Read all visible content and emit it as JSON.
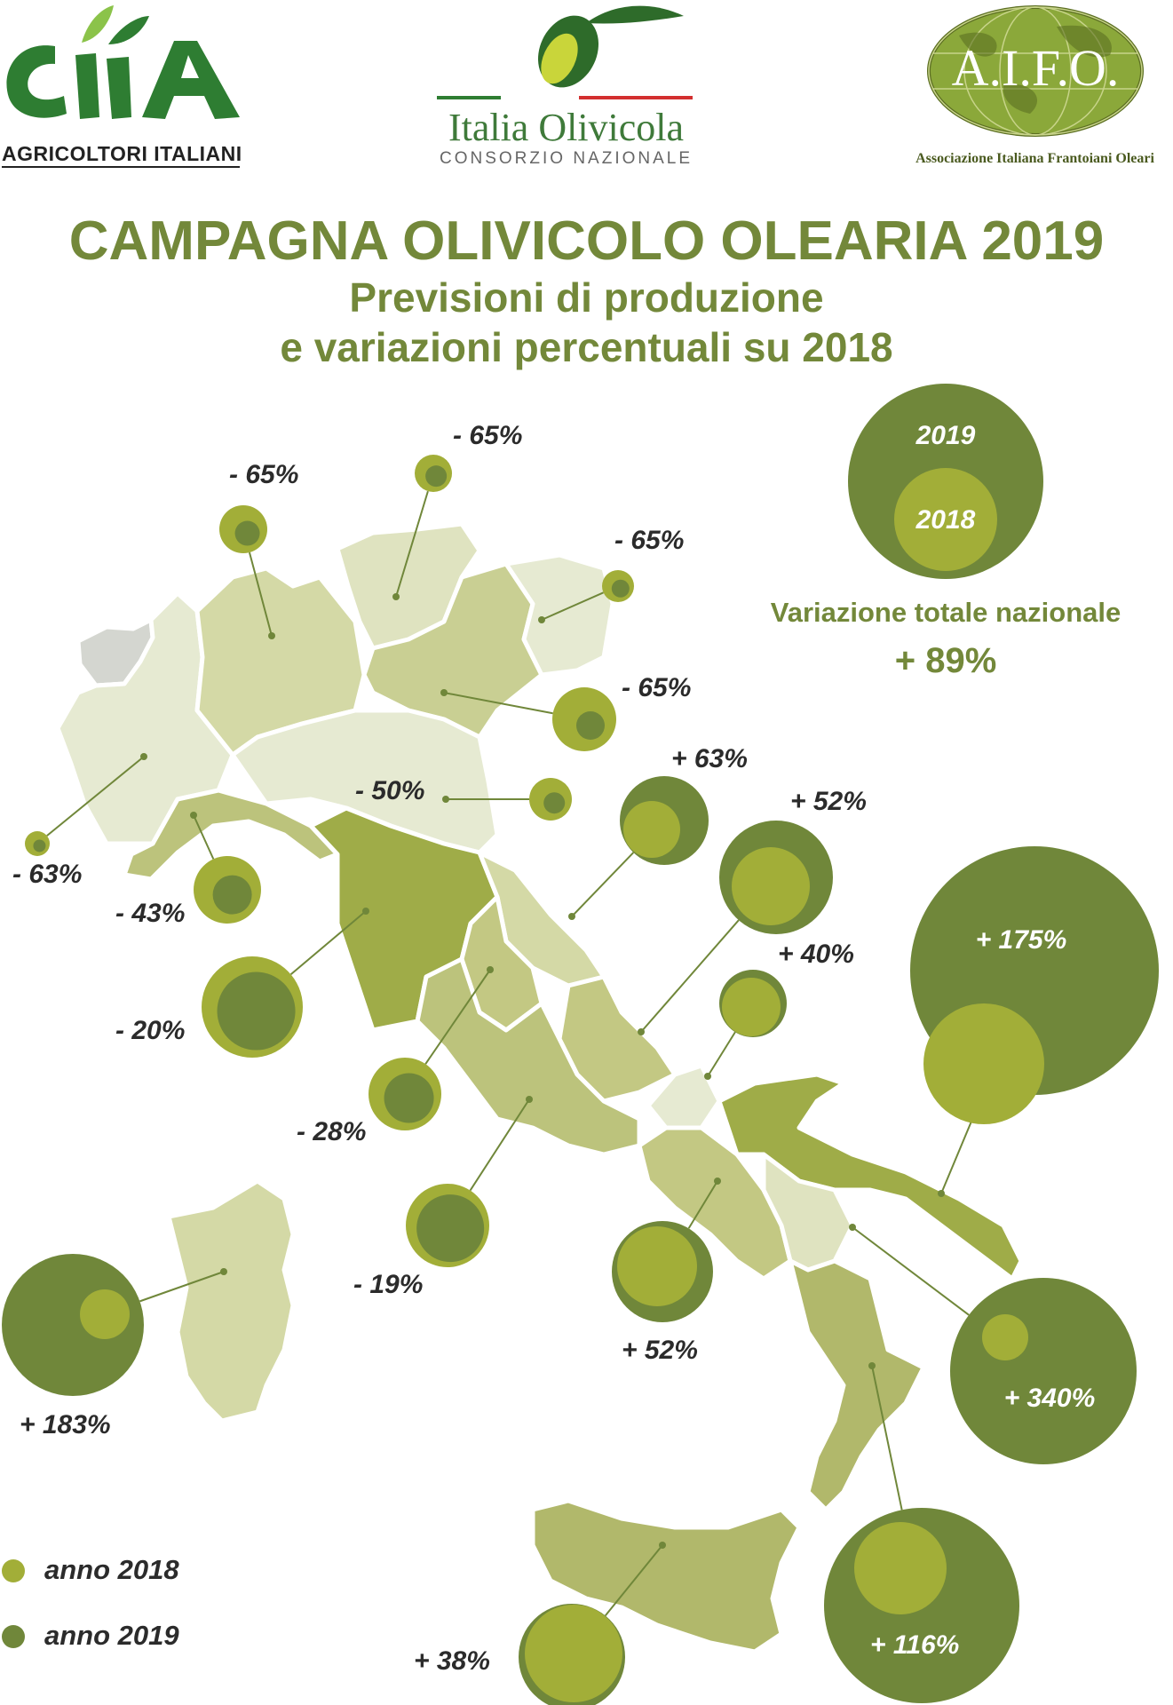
{
  "header": {
    "cia_subtitle": "AGRICOLTORI ITALIANI",
    "io_name": "Italia Olivicola",
    "io_subtitle": "CONSORZIO NAZIONALE",
    "aifo_name": "A.I.F.O.",
    "aifo_subtitle": "Associazione Italiana Frantoiani Oleari"
  },
  "title": "CAMPAGNA OLIVICOLO OLEARIA 2019",
  "subtitle_line1": "Previsioni di produzione",
  "subtitle_line2": "e variazioni percentuali su 2018",
  "legend_circle": {
    "outer_label": "2019",
    "inner_label": "2018"
  },
  "national": {
    "label": "Variazione totale nazionale",
    "value": "+ 89%"
  },
  "key": {
    "label_2018": "anno 2018",
    "label_2019": "anno 2019"
  },
  "colors": {
    "c2018": "#a2ae38",
    "c2019": "#70873a",
    "title": "#73883a",
    "text": "#2b2b2b"
  },
  "chart_data": {
    "type": "map-bubbles",
    "variations": [
      {
        "label": "- 65%",
        "value": -65
      },
      {
        "label": "- 65%",
        "value": -65
      },
      {
        "label": "- 65%",
        "value": -65
      },
      {
        "label": "- 65%",
        "value": -65
      },
      {
        "label": "- 63%",
        "value": -63
      },
      {
        "label": "- 50%",
        "value": -50
      },
      {
        "label": "- 43%",
        "value": -43
      },
      {
        "label": "- 20%",
        "value": -20
      },
      {
        "label": "- 28%",
        "value": -28
      },
      {
        "label": "- 19%",
        "value": -19
      },
      {
        "label": "+ 63%",
        "value": 63
      },
      {
        "label": "+ 52%",
        "value": 52
      },
      {
        "label": "+ 40%",
        "value": 40
      },
      {
        "label": "+ 175%",
        "value": 175
      },
      {
        "label": "+ 52%",
        "value": 52
      },
      {
        "label": "+ 340%",
        "value": 340
      },
      {
        "label": "+ 183%",
        "value": 183
      },
      {
        "label": "+ 116%",
        "value": 116
      },
      {
        "label": "+ 38%",
        "value": 38
      }
    ]
  }
}
